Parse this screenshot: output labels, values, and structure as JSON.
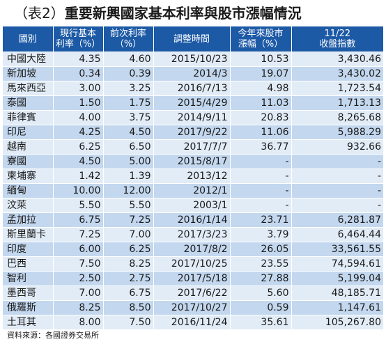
{
  "title": {
    "number": "（表2）",
    "text": "重要新興國家基本利率與股市漲幅情況"
  },
  "headers": [
    [
      "國別"
    ],
    [
      "現行基本",
      "利率（%）"
    ],
    [
      "前次利率",
      "（%）"
    ],
    [
      "調整時間"
    ],
    [
      "今年來股市",
      "漲幅（%）"
    ],
    [
      "11/22",
      "收盤指數"
    ]
  ],
  "rows": [
    [
      "中國大陸",
      "4.35",
      "4.60",
      "2015/10/23",
      "10.53",
      "3,430.46"
    ],
    [
      "新加坡",
      "0.34",
      "0.39",
      "2014/3",
      "19.07",
      "3,430.02"
    ],
    [
      "馬來西亞",
      "3.00",
      "3.25",
      "2016/7/13",
      "4.98",
      "1,723.54"
    ],
    [
      "泰國",
      "1.50",
      "1.75",
      "2015/4/29",
      "11.03",
      "1,713.13"
    ],
    [
      "菲律賓",
      "4.00",
      "3.75",
      "2014/9/11",
      "20.83",
      "8,265.68"
    ],
    [
      "印尼",
      "4.25",
      "4.50",
      "2017/9/22",
      "11.06",
      "5,988.29"
    ],
    [
      "越南",
      "6.25",
      "6.50",
      "2017/7/7",
      "36.77",
      "932.66"
    ],
    [
      "寮國",
      "4.50",
      "5.00",
      "2015/8/17",
      "-",
      "-"
    ],
    [
      "柬埔寨",
      "1.42",
      "1.39",
      "2013/12",
      "-",
      "-"
    ],
    [
      "緬甸",
      "10.00",
      "12.00",
      "2012/1",
      "-",
      "-"
    ],
    [
      "汶萊",
      "5.50",
      "5.50",
      "2003/1",
      "-",
      "-"
    ],
    [
      "孟加拉",
      "6.75",
      "7.25",
      "2016/1/14",
      "23.71",
      "6,281.87"
    ],
    [
      "斯里蘭卡",
      "7.25",
      "7.00",
      "2017/3/23",
      "3.79",
      "6,464.44"
    ],
    [
      "印度",
      "6.00",
      "6.25",
      "2017/8/2",
      "26.05",
      "33,561.55"
    ],
    [
      "巴西",
      "7.50",
      "8.25",
      "2017/10/25",
      "23.55",
      "74,594.61"
    ],
    [
      "智利",
      "2.50",
      "2.75",
      "2017/5/18",
      "27.88",
      "5,199.04"
    ],
    [
      "墨西哥",
      "7.00",
      "6.75",
      "2017/6/22",
      "5.60",
      "48,185.71"
    ],
    [
      "俄羅斯",
      "8.25",
      "8.50",
      "2017/10/27",
      "0.59",
      "1,147.61"
    ],
    [
      "土耳其",
      "8.00",
      "7.50",
      "2016/11/24",
      "35.61",
      "105,267.80"
    ]
  ],
  "source": "資料來源：各國證券交易所",
  "colors": {
    "header_bg": "#1d5aa6",
    "row_light": "#e2ecf7",
    "row_dark": "#c3d7ee"
  }
}
